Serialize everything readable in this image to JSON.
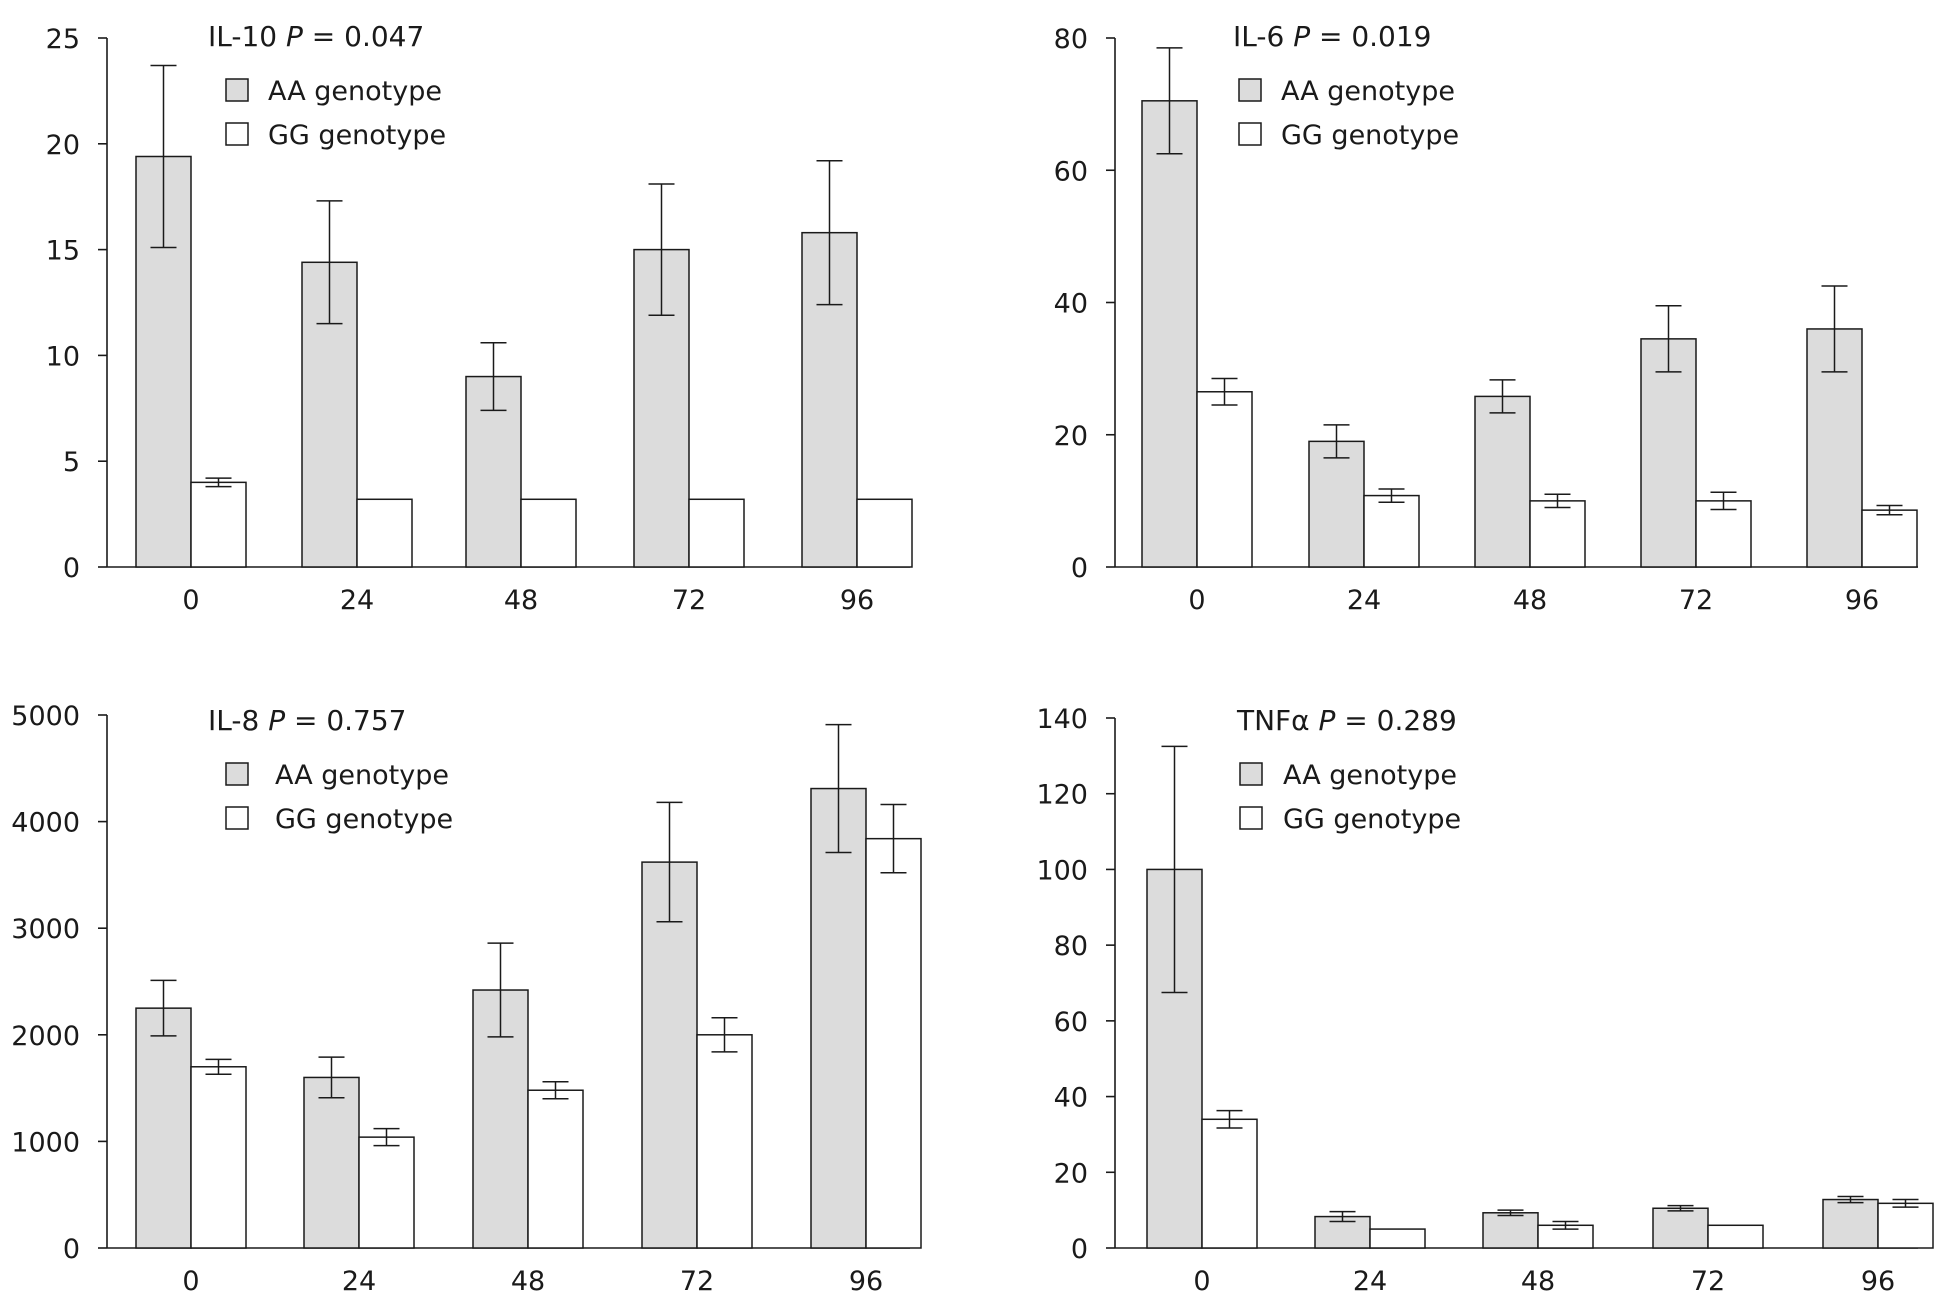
{
  "chart_data": [
    {
      "type": "bar",
      "panel": "top-left",
      "title_prefix": "IL-10",
      "title_p_letter": "P",
      "title_p_value": "= 0.047",
      "categories": [
        "0",
        "24",
        "48",
        "72",
        "96"
      ],
      "ylim": [
        0,
        25
      ],
      "yticks": [
        "0",
        "5",
        "10",
        "15",
        "20",
        "25"
      ],
      "ytick_values": [
        0,
        5,
        10,
        15,
        20,
        25
      ],
      "legend_placement": "top-left",
      "series": [
        {
          "name": "AA genotype",
          "fill": "#dcdcdc",
          "values": [
            19.4,
            14.4,
            9.0,
            15.0,
            15.8
          ],
          "errors": [
            4.3,
            2.9,
            1.6,
            3.1,
            3.4
          ]
        },
        {
          "name": "GG genotype",
          "fill": "#ffffff",
          "values": [
            4.0,
            3.2,
            3.2,
            3.2,
            3.2
          ],
          "errors": [
            0.2,
            0,
            0,
            0,
            0
          ]
        }
      ]
    },
    {
      "type": "bar",
      "panel": "top-right",
      "title_prefix": "IL-6",
      "title_p_letter": "P",
      "title_p_value": "= 0.019",
      "categories": [
        "0",
        "24",
        "48",
        "72",
        "96"
      ],
      "ylim": [
        0,
        80
      ],
      "yticks": [
        "0",
        "20",
        "40",
        "60",
        "80"
      ],
      "ytick_values": [
        0,
        20,
        40,
        60,
        80
      ],
      "legend_placement": "top-left",
      "series": [
        {
          "name": "AA genotype",
          "fill": "#dcdcdc",
          "values": [
            70.5,
            19,
            25.8,
            34.5,
            36
          ],
          "errors": [
            8,
            2.5,
            2.5,
            5,
            6.5
          ]
        },
        {
          "name": "GG genotype",
          "fill": "#ffffff",
          "values": [
            26.5,
            10.8,
            10,
            10,
            8.6
          ],
          "errors": [
            2,
            1,
            1,
            1.3,
            0.7
          ]
        }
      ]
    },
    {
      "type": "bar",
      "panel": "bottom-left",
      "title_prefix": "IL-8",
      "title_p_letter": "P",
      "title_p_value": "= 0.757",
      "categories": [
        "0",
        "24",
        "48",
        "72",
        "96"
      ],
      "ylim": [
        0,
        5000
      ],
      "yticks": [
        "0",
        "1000",
        "2000",
        "3000",
        "4000",
        "5000"
      ],
      "ytick_values": [
        0,
        1000,
        2000,
        3000,
        4000,
        5000
      ],
      "legend_placement": "top-left",
      "series": [
        {
          "name": "AA genotype",
          "fill": "#dcdcdc",
          "values": [
            2250,
            1600,
            2420,
            3620,
            4310
          ],
          "errors": [
            260,
            190,
            440,
            560,
            600
          ]
        },
        {
          "name": "GG genotype",
          "fill": "#ffffff",
          "values": [
            1700,
            1040,
            1480,
            2000,
            3840
          ],
          "errors": [
            70,
            80,
            80,
            160,
            320
          ]
        }
      ]
    },
    {
      "type": "bar",
      "panel": "bottom-right",
      "title_prefix": "TNFα",
      "title_p_letter": "P",
      "title_p_value": "= 0.289",
      "categories": [
        "0",
        "24",
        "48",
        "72",
        "96"
      ],
      "ylim": [
        0,
        140
      ],
      "yticks": [
        "0",
        "20",
        "40",
        "60",
        "80",
        "100",
        "120",
        "140"
      ],
      "ytick_values": [
        0,
        20,
        40,
        60,
        80,
        100,
        120,
        140
      ],
      "legend_placement": "top-left",
      "series": [
        {
          "name": "AA genotype",
          "fill": "#dcdcdc",
          "values": [
            100,
            8.3,
            9.3,
            10.5,
            12.8
          ],
          "errors": [
            32.5,
            1.3,
            0.7,
            0.7,
            0.8
          ]
        },
        {
          "name": "GG genotype",
          "fill": "#ffffff",
          "values": [
            34,
            5,
            6,
            6,
            11.8
          ],
          "errors": [
            2.3,
            0,
            1,
            0,
            1
          ]
        }
      ]
    }
  ]
}
